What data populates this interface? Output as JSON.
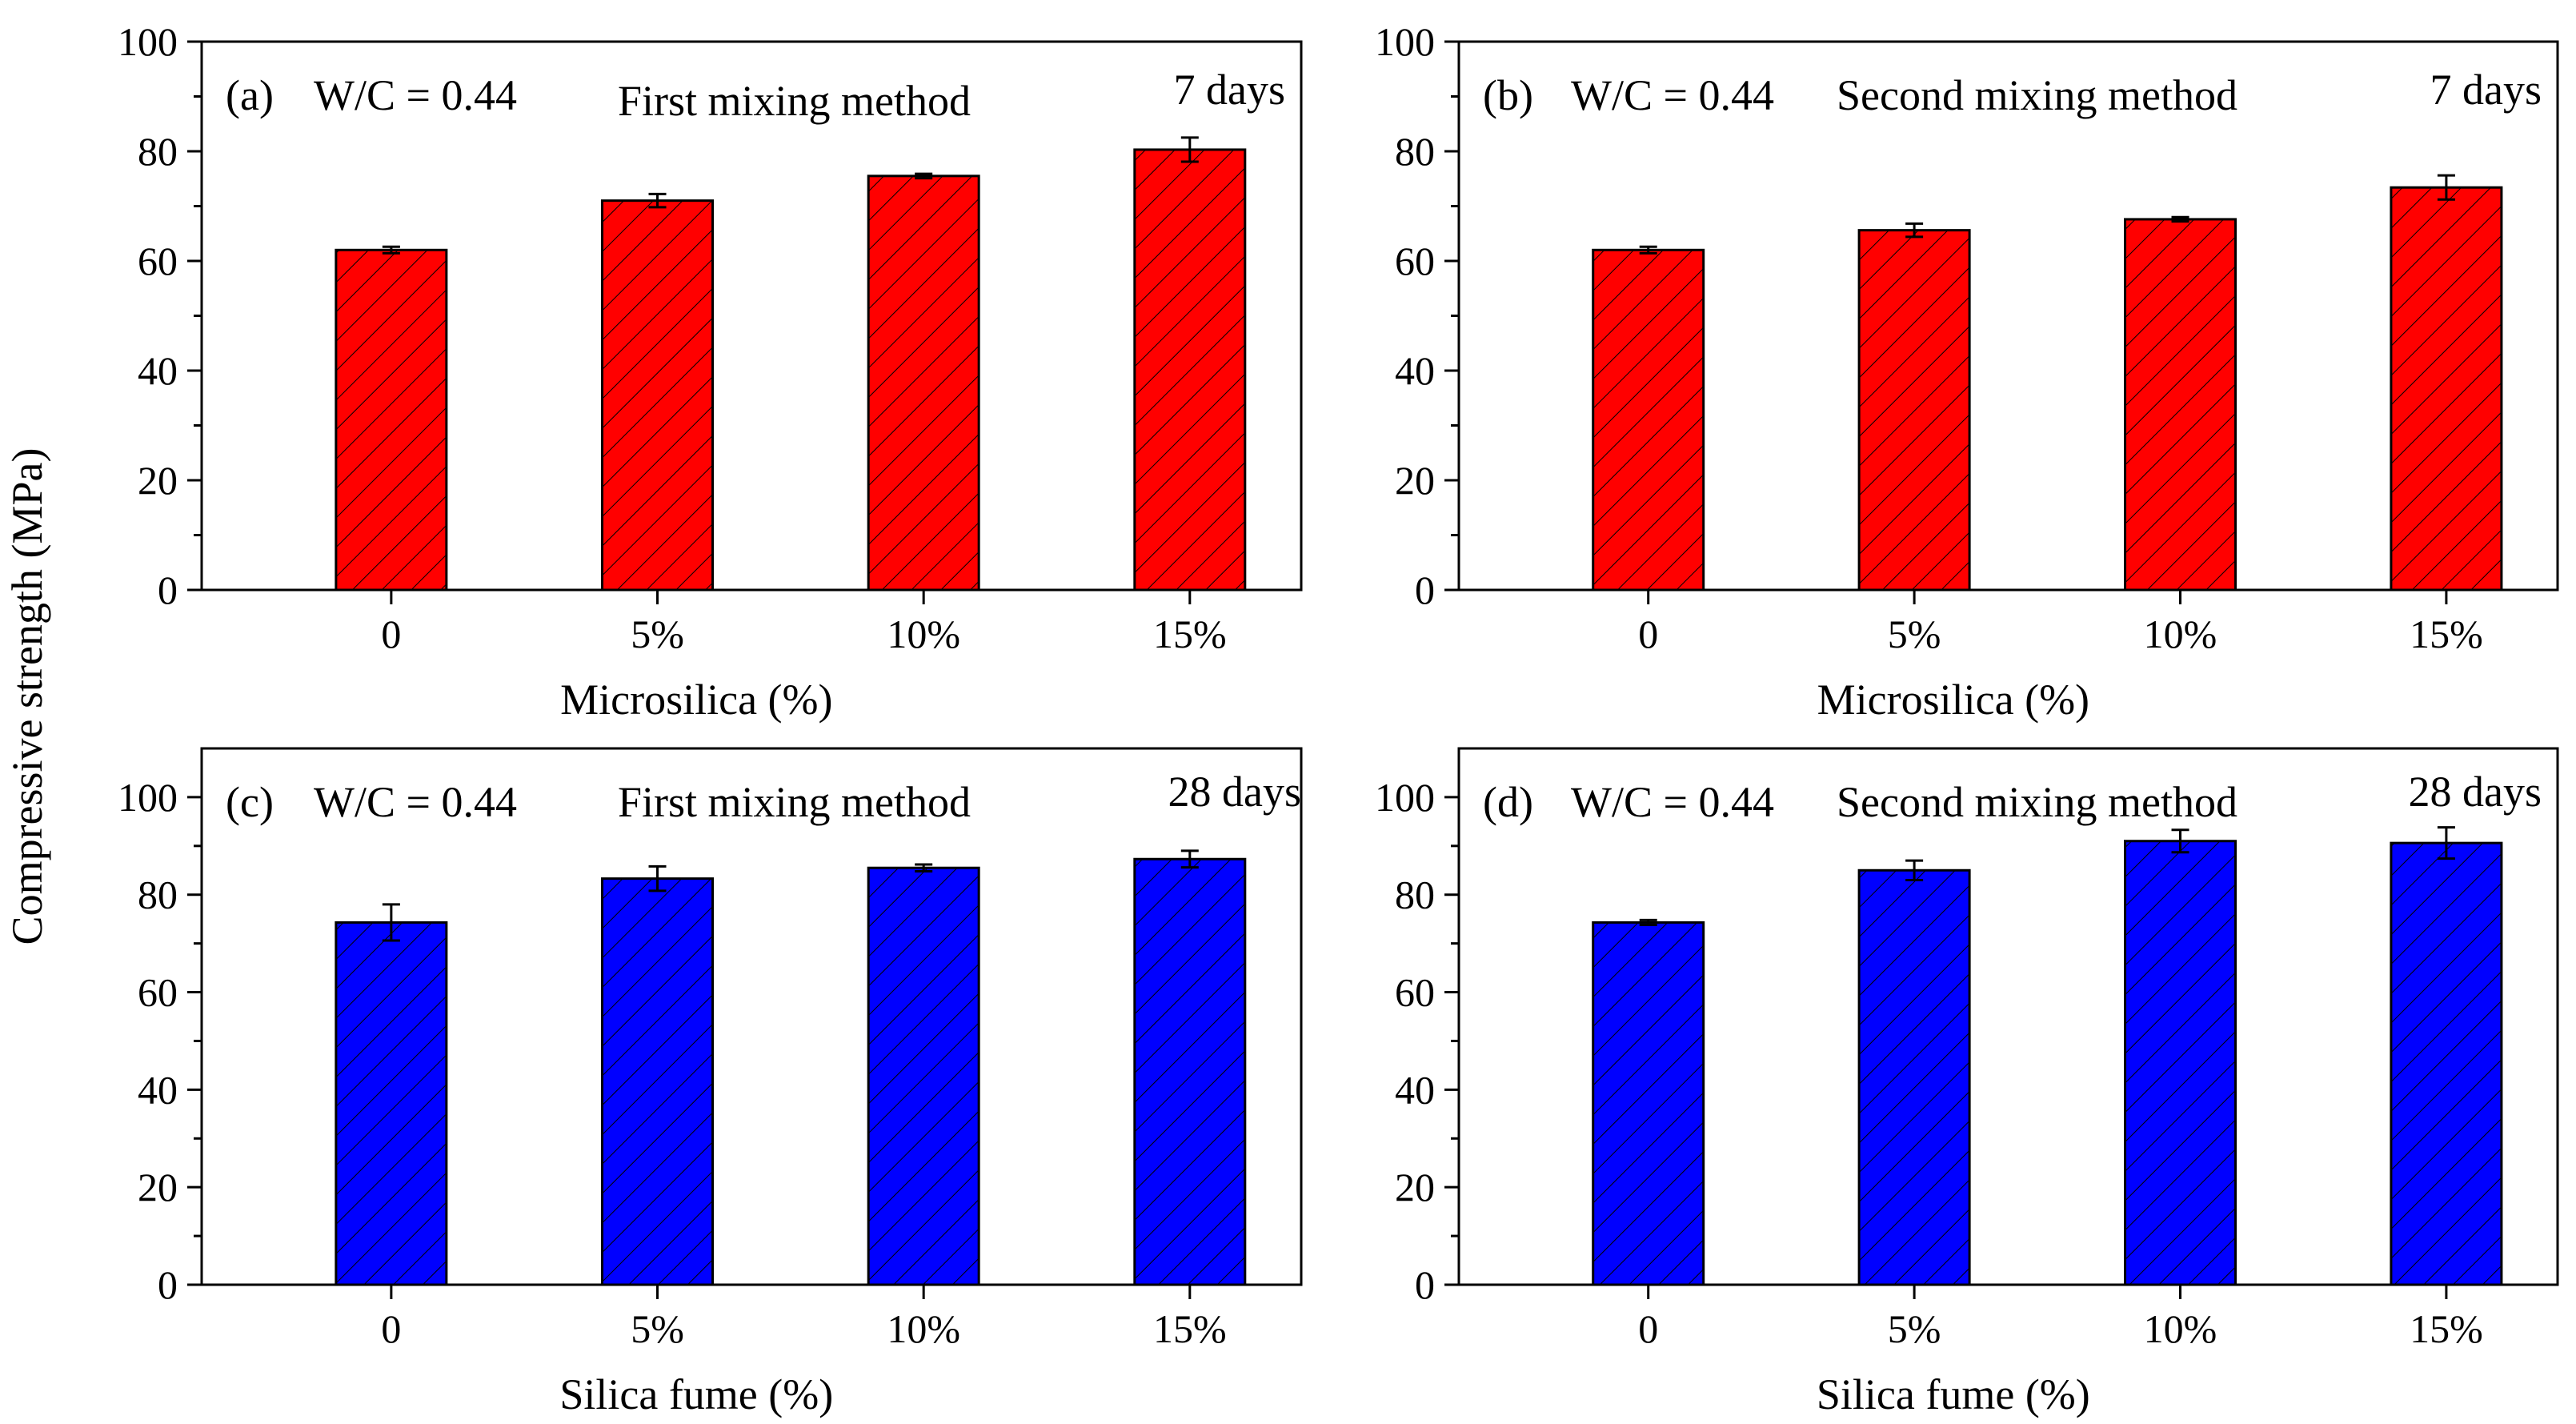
{
  "figure": {
    "ylabel": "Compressive strength (MPa)"
  },
  "colors": {
    "red_bar": "#ff0000",
    "blue_bar": "#0000ff",
    "hatch": "#000000"
  },
  "chart_data": [
    {
      "type": "bar",
      "panel": "(a)",
      "wc": "W/C = 0.44",
      "method": "First mixing method",
      "age": "7 days",
      "xlabel": "Microsilica (%)",
      "ylabel": "Compressive strength (MPa)",
      "categories": [
        "0",
        "5%",
        "10%",
        "15%"
      ],
      "values": [
        62,
        71,
        75.5,
        80.3
      ],
      "errors": [
        0.6,
        1.2,
        0.4,
        2.2
      ],
      "ylim": [
        0,
        100
      ],
      "yticks": [
        "0",
        "20",
        "40",
        "60",
        "80",
        "100"
      ],
      "color": "red"
    },
    {
      "type": "bar",
      "panel": "(b)",
      "wc": "W/C = 0.44",
      "method": "Second mixing method",
      "age": "7 days",
      "xlabel": "Microsilica (%)",
      "ylabel": "Compressive strength (MPa)",
      "categories": [
        "0",
        "5%",
        "10%",
        "15%"
      ],
      "values": [
        62,
        65.6,
        67.6,
        73.4
      ],
      "errors": [
        0.6,
        1.2,
        0.4,
        2.2
      ],
      "ylim": [
        0,
        100
      ],
      "yticks": [
        "0",
        "20",
        "40",
        "60",
        "80",
        "100"
      ],
      "color": "red"
    },
    {
      "type": "bar",
      "panel": "(c)",
      "wc": "W/C = 0.44",
      "method": "First mixing method",
      "age": "28 days",
      "xlabel": "Silica fume (%)",
      "ylabel": "Compressive strength (MPa)",
      "categories": [
        "0",
        "5%",
        "10%",
        "15%"
      ],
      "values": [
        74.3,
        83.3,
        85.5,
        87.3
      ],
      "errors": [
        3.7,
        2.5,
        0.7,
        1.7
      ],
      "ylim": [
        0,
        110
      ],
      "yticks": [
        "0",
        "20",
        "40",
        "60",
        "80",
        "100"
      ],
      "color": "blue"
    },
    {
      "type": "bar",
      "panel": "(d)",
      "wc": "W/C = 0.44",
      "method": "Second mixing method",
      "age": "28 days",
      "xlabel": "Silica fume (%)",
      "ylabel": "Compressive strength (MPa)",
      "categories": [
        "0",
        "5%",
        "10%",
        "15%"
      ],
      "values": [
        74.3,
        85,
        91,
        90.6
      ],
      "errors": [
        0.5,
        2,
        2.3,
        3.2
      ],
      "ylim": [
        0,
        110
      ],
      "yticks": [
        "0",
        "20",
        "40",
        "60",
        "80",
        "100"
      ],
      "color": "blue"
    }
  ]
}
